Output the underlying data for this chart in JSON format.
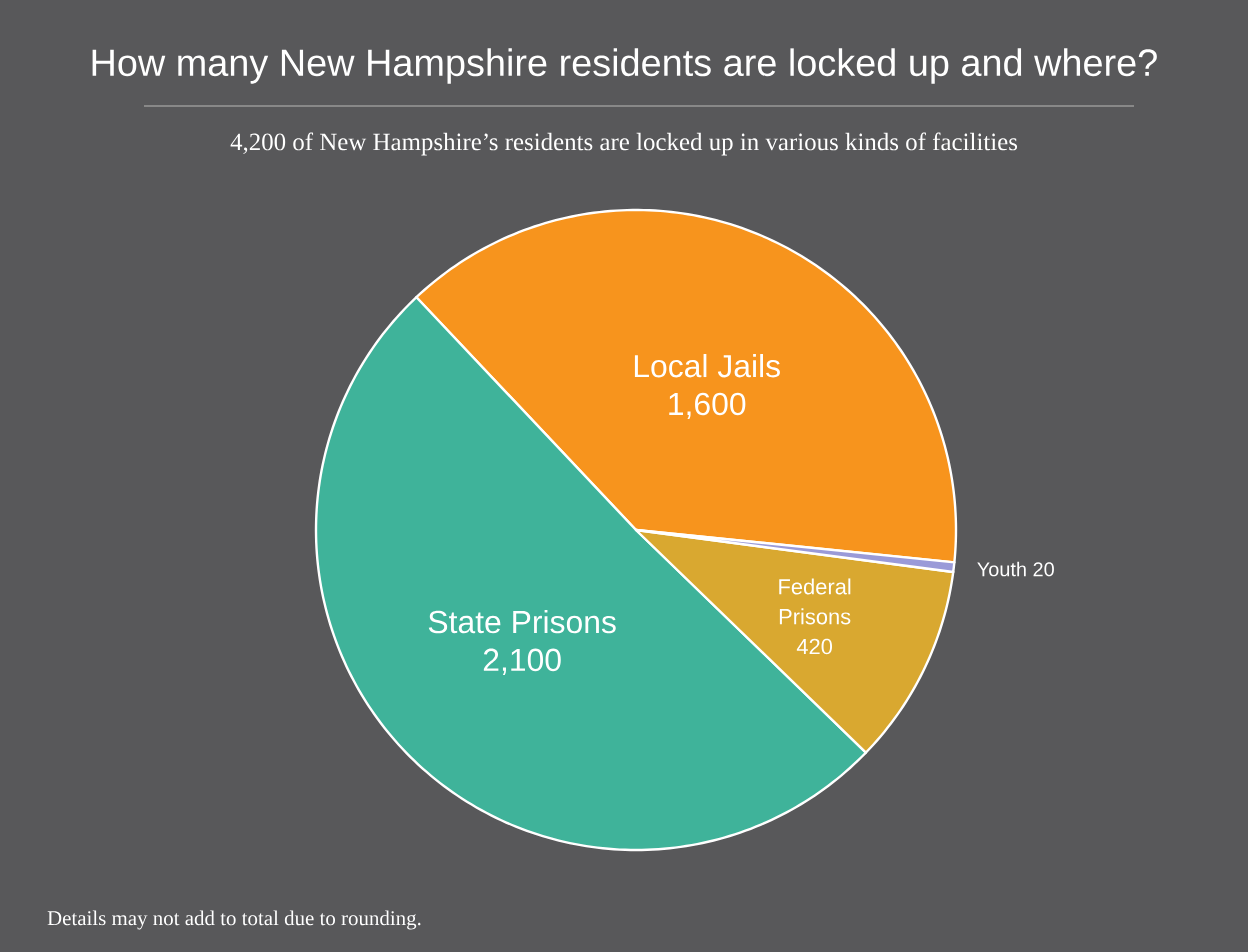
{
  "chart_data": {
    "type": "pie",
    "title": "How many New Hampshire residents are locked up and where?",
    "subtitle": "4,200 of New Hampshire’s residents are locked up in various kinds of facilities",
    "categories": [
      "Local Jails",
      "State Prisons",
      "Federal Prisons",
      "Youth"
    ],
    "values": [
      1600,
      2100,
      420,
      20
    ],
    "value_labels": [
      "1,600",
      "2,100",
      "420",
      "20"
    ],
    "colors": [
      "#f7941d",
      "#3fb39a",
      "#d9a830",
      "#9a9ad8"
    ],
    "annotations": [
      "Details may not add to total due to rounding."
    ]
  }
}
